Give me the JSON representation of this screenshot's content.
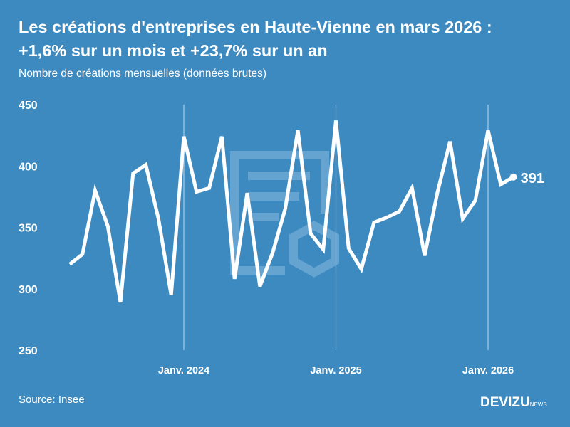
{
  "header": {
    "title_line1": "Les créations d'entreprises en Haute-Vienne en mars 2026 :",
    "title_line2": "+1,6% sur un mois et +23,7% sur un an",
    "subtitle": "Nombre de créations mensuelles (données brutes)"
  },
  "footer": {
    "source": "Source: Insee",
    "logo_main": "DEVIZU",
    "logo_sub": "NEWS"
  },
  "colors": {
    "background": "#3d8ac0",
    "line": "#ffffff",
    "gridline": "#a9cbe3"
  },
  "chart_data": {
    "type": "line",
    "title": "Les créations d'entreprises en Haute-Vienne en mars 2026 : +1,6% sur un mois et +23,7% sur un an",
    "subtitle": "Nombre de créations mensuelles (données brutes)",
    "ylim": [
      250,
      450
    ],
    "yticks": [
      250,
      300,
      350,
      400,
      450
    ],
    "xtick_labels": [
      {
        "label": "Janv. 2024",
        "month": "2024-01"
      },
      {
        "label": "Janv. 2025",
        "month": "2025-01"
      },
      {
        "label": "Janv. 2026",
        "month": "2026-01"
      }
    ],
    "x": [
      "2023-04",
      "2023-05",
      "2023-06",
      "2023-07",
      "2023-08",
      "2023-09",
      "2023-10",
      "2023-11",
      "2023-12",
      "2024-01",
      "2024-02",
      "2024-03",
      "2024-04",
      "2024-05",
      "2024-06",
      "2024-07",
      "2024-08",
      "2024-09",
      "2024-10",
      "2024-11",
      "2024-12",
      "2025-01",
      "2025-02",
      "2025-03",
      "2025-04",
      "2025-05",
      "2025-06",
      "2025-07",
      "2025-08",
      "2025-09",
      "2025-10",
      "2025-11",
      "2025-12",
      "2026-01",
      "2026-02",
      "2026-03"
    ],
    "values": [
      320,
      328,
      380,
      351,
      289,
      394,
      401,
      357,
      295,
      424,
      379,
      382,
      424,
      308,
      378,
      302,
      329,
      365,
      429,
      345,
      332,
      437,
      333,
      316,
      354,
      358,
      363,
      382,
      327,
      378,
      420,
      357,
      372,
      429,
      385,
      391
    ],
    "last_label": "391",
    "grid": "vertical lines at January"
  }
}
